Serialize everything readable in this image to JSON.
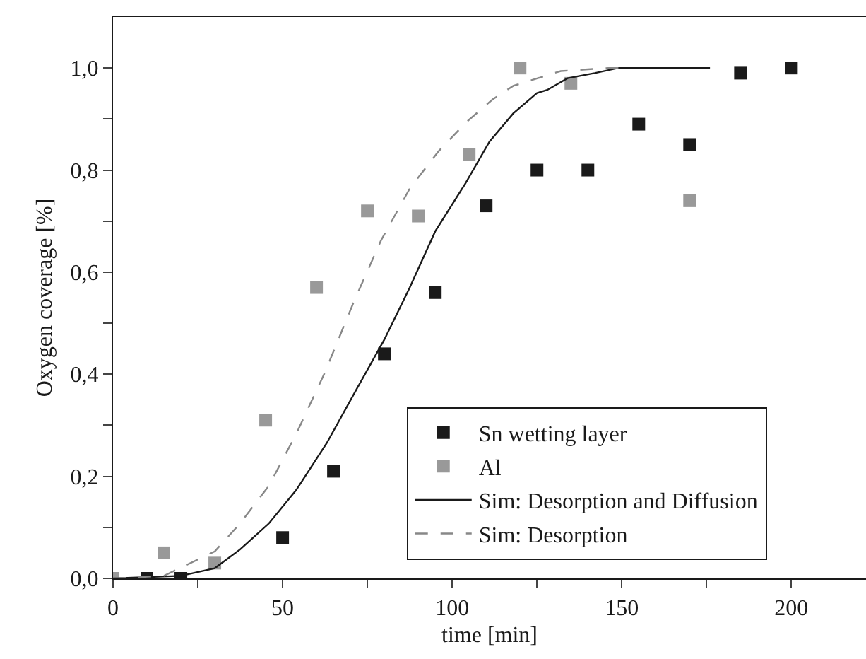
{
  "chart_data": {
    "type": "scatter",
    "xlabel": "time [min]",
    "ylabel": "Oxygen coverage [%]",
    "xlim": [
      0,
      222
    ],
    "ylim": [
      0,
      1.1
    ],
    "xticks": [
      0,
      {
        "value": 25,
        "label": null
      },
      50,
      {
        "value": 75,
        "label": null
      },
      100,
      {
        "value": 125,
        "label": null
      },
      150,
      {
        "value": 175,
        "label": null
      },
      200
    ],
    "yticks": [
      {
        "value": 0,
        "label": "0,0"
      },
      {
        "value": 0.1,
        "label": null
      },
      {
        "value": 0.2,
        "label": "0,2"
      },
      {
        "value": 0.3,
        "label": null
      },
      {
        "value": 0.4,
        "label": "0,4"
      },
      {
        "value": 0.5,
        "label": null
      },
      {
        "value": 0.6,
        "label": "0,6"
      },
      {
        "value": 0.7,
        "label": null
      },
      {
        "value": 0.8,
        "label": "0,8"
      },
      {
        "value": 0.9,
        "label": null
      },
      {
        "value": 1.0,
        "label": "1,0"
      }
    ],
    "legend": "bottom right",
    "marker": "square",
    "series": [
      {
        "name": "Sn wetting layer",
        "color": "#1a1a1a",
        "x": [
          10,
          20,
          50,
          65,
          80,
          95,
          110,
          125,
          140,
          155,
          170,
          185,
          200
        ],
        "values": [
          0,
          0,
          0.08,
          0.21,
          0.44,
          0.56,
          0.73,
          0.8,
          0.8,
          0.89,
          0.85,
          0.99,
          1.0
        ]
      },
      {
        "name": "Al",
        "color": "#999999",
        "x": [
          0,
          15,
          30,
          45,
          60,
          75,
          90,
          105,
          120,
          135,
          170
        ],
        "values": [
          0,
          0.05,
          0.03,
          0.31,
          0.57,
          0.72,
          0.71,
          0.83,
          1.0,
          0.97,
          0.74
        ]
      },
      {
        "name": "Sim: Desorption and Diffusion",
        "type": "line",
        "line_style": "solid",
        "marker": "none",
        "color": "#1a1a1a",
        "x": [
          0,
          20,
          30,
          37.5,
          46,
          54,
          63,
          71.5,
          80,
          87.5,
          95,
          104,
          111,
          118,
          125,
          128,
          134,
          142,
          149,
          176
        ],
        "values": [
          0,
          0.005,
          0.02,
          0.057,
          0.108,
          0.173,
          0.265,
          0.367,
          0.468,
          0.57,
          0.68,
          0.775,
          0.856,
          0.911,
          0.951,
          0.957,
          0.98,
          0.99,
          1.0,
          1.0
        ]
      },
      {
        "name": "Sim: Desorption",
        "type": "line",
        "line_style": "dashed",
        "marker": "none",
        "color": "#888888",
        "x": [
          0,
          15,
          30,
          37.5,
          46,
          54,
          62.5,
          71,
          79,
          87.5,
          96,
          104,
          112,
          118,
          132,
          146,
          150
        ],
        "values": [
          0,
          0.005,
          0.053,
          0.108,
          0.182,
          0.283,
          0.404,
          0.542,
          0.662,
          0.764,
          0.837,
          0.893,
          0.939,
          0.965,
          0.994,
          1.0,
          1.0
        ]
      }
    ]
  }
}
